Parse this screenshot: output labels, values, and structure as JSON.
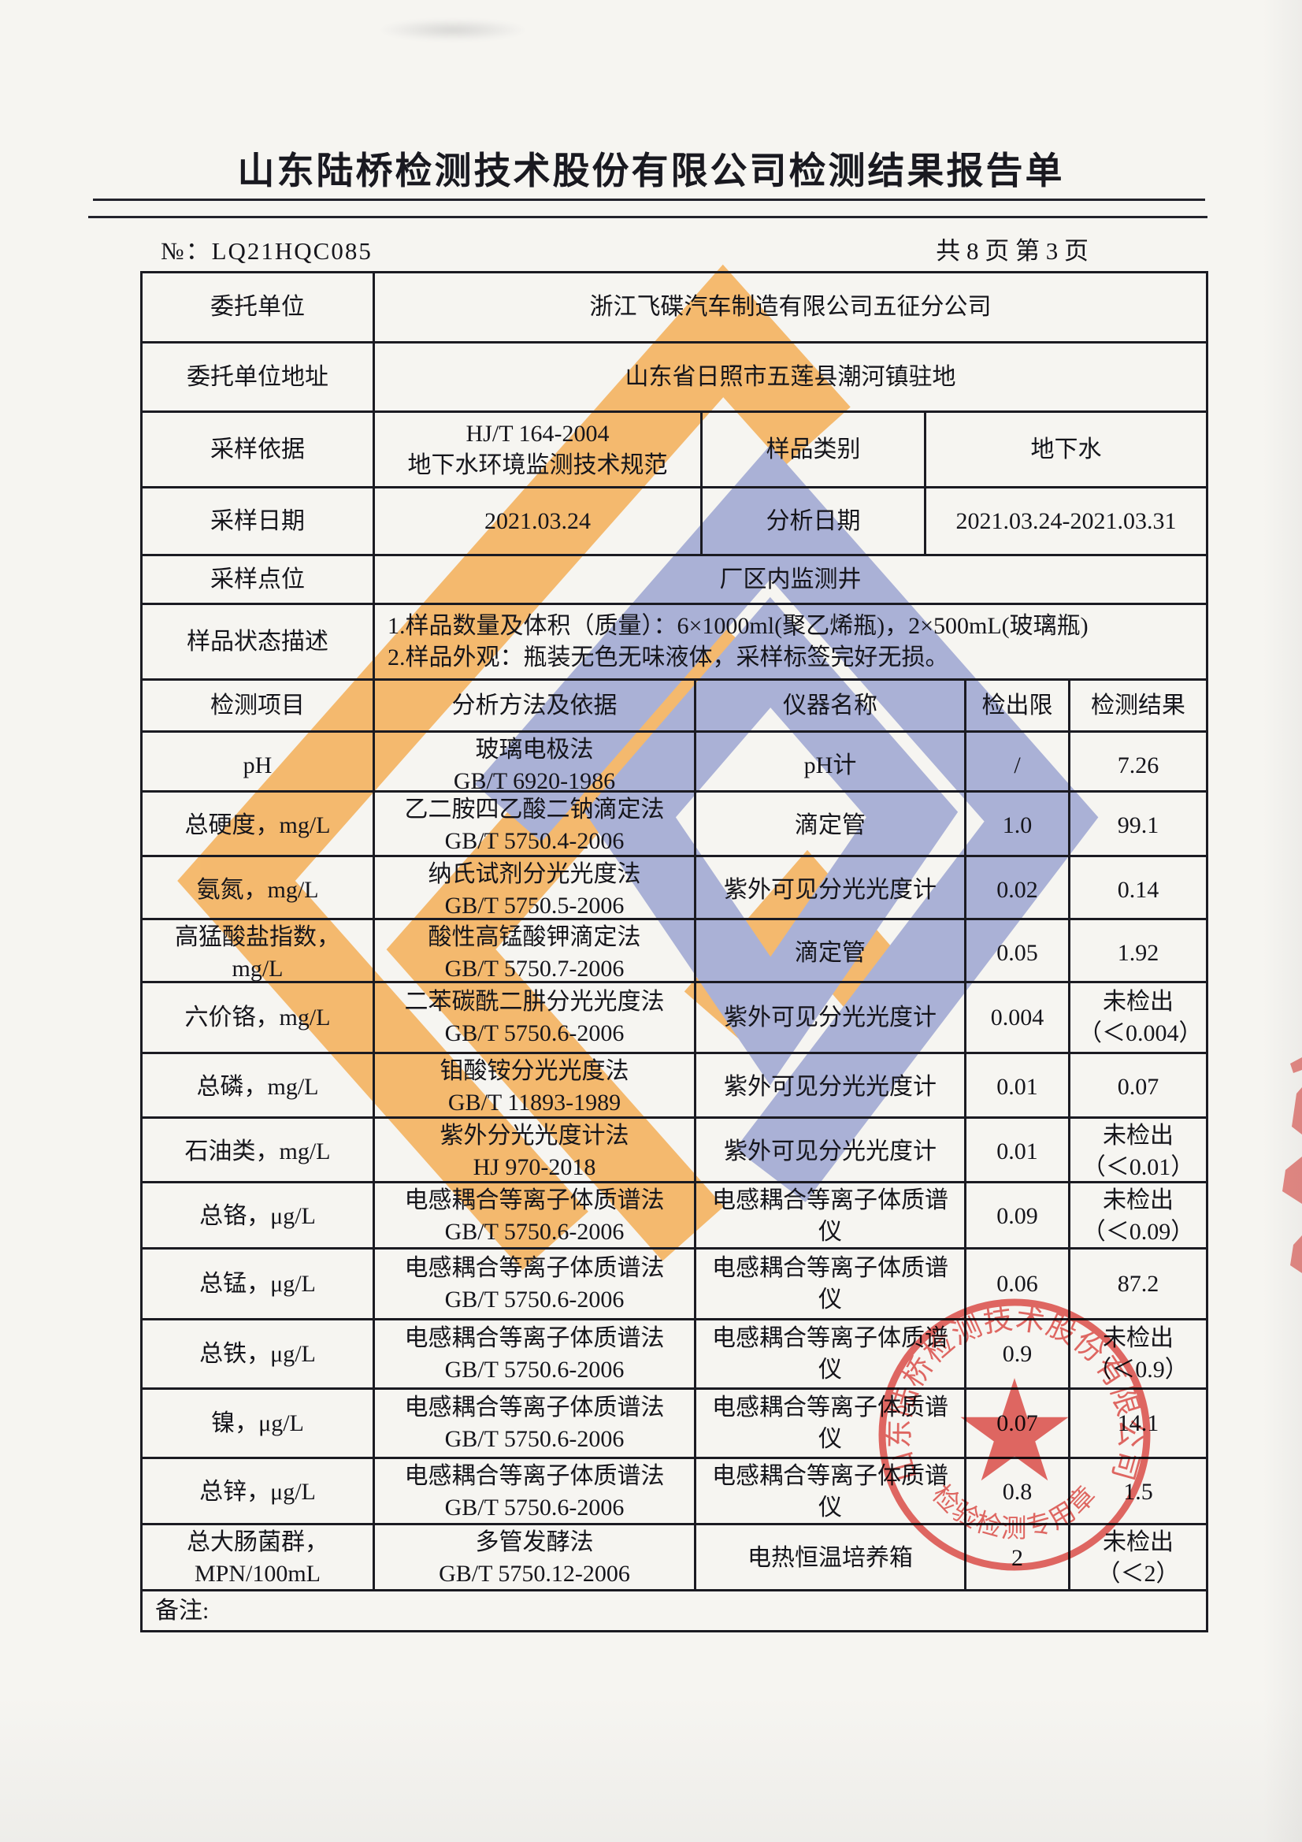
{
  "page": {
    "title": "山东陆桥检测技术股份有限公司检测结果报告单",
    "report_no_label": "№：",
    "report_no": "LQ21HQC085",
    "page_info": "共 8 页 第 3 页"
  },
  "info_rows": [
    {
      "label": "委托单位",
      "value": "浙江飞碟汽车制造有限公司五征分公司"
    },
    {
      "label": "委托单位地址",
      "value": "山东省日照市五莲县潮河镇驻地"
    },
    {
      "label": "采样依据",
      "value": "HJ/T 164-2004\n地下水环境监测技术规范",
      "label2": "样品类别",
      "value2": "地下水"
    },
    {
      "label": "采样日期",
      "value": "2021.03.24",
      "label2": "分析日期",
      "value2": "2021.03.24-2021.03.31"
    },
    {
      "label": "采样点位",
      "value": "厂区内监测井"
    },
    {
      "label": "样品状态描述",
      "value": "1.样品数量及体积（质量）：6×1000ml(聚乙烯瓶)，2×500mL(玻璃瓶)\n2.样品外观：瓶装无色无味液体，采样标签完好无损。",
      "align": "left"
    }
  ],
  "results_table": {
    "headers": [
      "检测项目",
      "分析方法及依据",
      "仪器名称",
      "检出限",
      "检测结果"
    ],
    "rows": [
      {
        "item": "pH",
        "method": [
          "玻璃电极法",
          "GB/T 6920-1986"
        ],
        "instrument": "pH计",
        "limit": "/",
        "result": [
          "7.26"
        ]
      },
      {
        "item": "总硬度，mg/L",
        "method": [
          "乙二胺四乙酸二钠滴定法",
          "GB/T 5750.4-2006"
        ],
        "instrument": "滴定管",
        "limit": "1.0",
        "result": [
          "99.1"
        ]
      },
      {
        "item": "氨氮，mg/L",
        "method": [
          "纳氏试剂分光光度法",
          "GB/T 5750.5-2006"
        ],
        "instrument": "紫外可见分光光度计",
        "limit": "0.02",
        "result": [
          "0.14"
        ]
      },
      {
        "item": "高猛酸盐指数，mg/L",
        "method": [
          "酸性高锰酸钾滴定法",
          "GB/T 5750.7-2006"
        ],
        "instrument": "滴定管",
        "limit": "0.05",
        "result": [
          "1.92"
        ]
      },
      {
        "item": "六价铬，mg/L",
        "method": [
          "二苯碳酰二肼分光光度法",
          "GB/T 5750.6-2006"
        ],
        "instrument": "紫外可见分光光度计",
        "limit": "0.004",
        "result": [
          "未检出",
          "（＜0.004）"
        ]
      },
      {
        "item": "总磷，mg/L",
        "method": [
          "钼酸铵分光光度法",
          "GB/T 11893-1989"
        ],
        "instrument": "紫外可见分光光度计",
        "limit": "0.01",
        "result": [
          "0.07"
        ]
      },
      {
        "item": "石油类，mg/L",
        "method": [
          "紫外分光光度计法",
          "HJ 970-2018"
        ],
        "instrument": "紫外可见分光光度计",
        "limit": "0.01",
        "result": [
          "未检出",
          "（＜0.01）"
        ]
      },
      {
        "item": "总铬，μg/L",
        "method": [
          "电感耦合等离子体质谱法",
          "GB/T 5750.6-2006"
        ],
        "instrument": "电感耦合等离子体质谱仪",
        "limit": "0.09",
        "result": [
          "未检出",
          "（＜0.09）"
        ]
      },
      {
        "item": "总锰，μg/L",
        "method": [
          "电感耦合等离子体质谱法",
          "GB/T 5750.6-2006"
        ],
        "instrument": "电感耦合等离子体质谱仪",
        "limit": "0.06",
        "result": [
          "87.2"
        ]
      },
      {
        "item": "总铁，μg/L",
        "method": [
          "电感耦合等离子体质谱法",
          "GB/T 5750.6-2006"
        ],
        "instrument": "电感耦合等离子体质谱仪",
        "limit": "0.9",
        "result": [
          "未检出",
          "（＜0.9）"
        ]
      },
      {
        "item": "镍，μg/L",
        "method": [
          "电感耦合等离子体质谱法",
          "GB/T 5750.6-2006"
        ],
        "instrument": "电感耦合等离子体质谱仪",
        "limit": "0.07",
        "result": [
          "14.1"
        ]
      },
      {
        "item": "总锌，μg/L",
        "method": [
          "电感耦合等离子体质谱法",
          "GB/T 5750.6-2006"
        ],
        "instrument": "电感耦合等离子体质谱仪",
        "limit": "0.8",
        "result": [
          "1.5"
        ]
      },
      {
        "item": "总大肠菌群，\nMPN/100mL",
        "method": [
          "多管发酵法",
          "GB/T 5750.12-2006"
        ],
        "instrument": "电热恒温培养箱",
        "limit": "2",
        "result": [
          "未检出",
          "（＜2）"
        ]
      }
    ],
    "remark_label": "备注:"
  },
  "stamp": {
    "ring_text": "山东陆桥检测技术股份有限公司",
    "bottom_text": "检验检测专用章",
    "color": "#e0413c"
  },
  "watermark": {
    "orange_color": "#f4ad52",
    "blue_color": "#9aa3d1"
  }
}
